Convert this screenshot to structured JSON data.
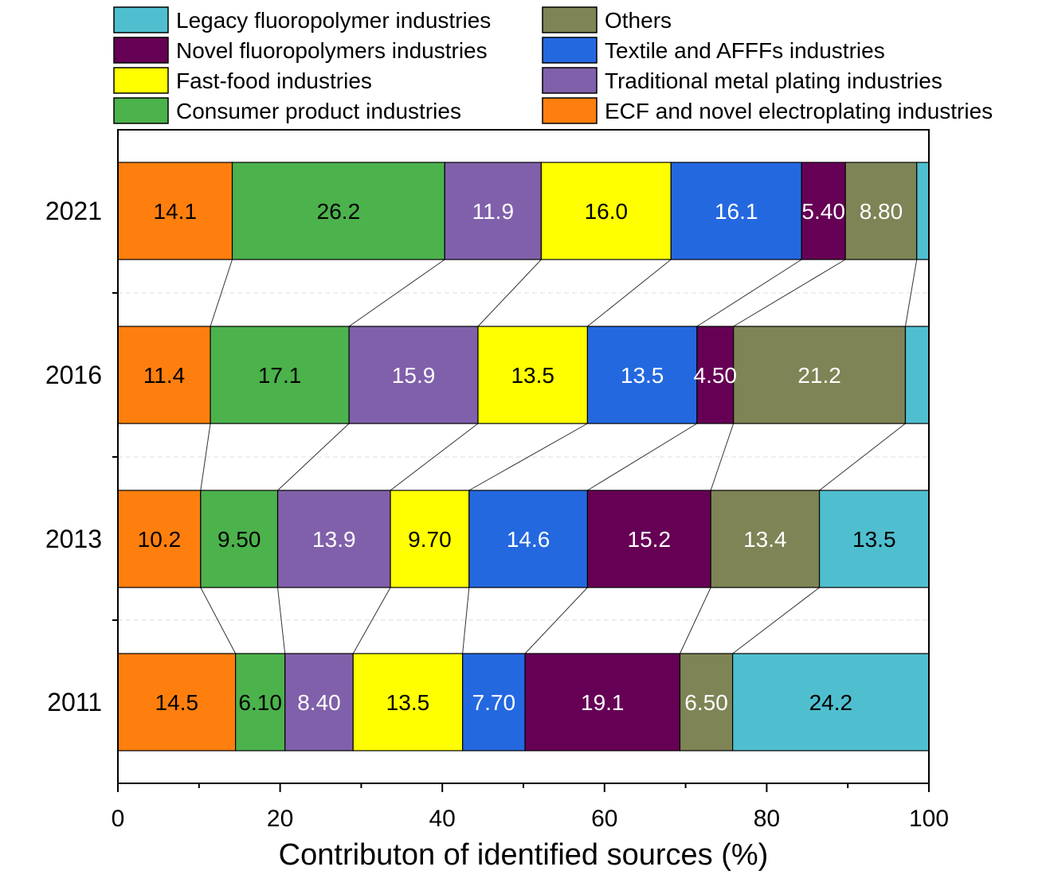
{
  "chart_data": {
    "type": "bar",
    "orientation": "horizontal",
    "stacked": true,
    "title": "",
    "xlabel": "Contributon of identified sources (%)",
    "ylabel": "",
    "xlim": [
      0,
      100
    ],
    "xticks": [
      "0",
      "20",
      "40",
      "60",
      "80",
      "100"
    ],
    "categories": [
      "2021",
      "2016",
      "2013",
      "2011"
    ],
    "legend_position": "top",
    "connector_lines": true,
    "series": [
      {
        "name": "ECF and novel electroplating industries",
        "color": "#ff7f0e",
        "label_color": "#000000",
        "values": [
          14.1,
          11.4,
          10.2,
          14.5
        ],
        "labels": [
          "14.1",
          "11.4",
          "10.2",
          "14.5"
        ]
      },
      {
        "name": "Consumer product industries",
        "color": "#4cb24c",
        "label_color": "#000000",
        "values": [
          26.2,
          17.1,
          9.5,
          6.1
        ],
        "labels": [
          "26.2",
          "17.1",
          "9.50",
          "6.10"
        ]
      },
      {
        "name": "Traditional metal plating industries",
        "color": "#8060aa",
        "label_color": "#ffffff",
        "values": [
          11.9,
          15.9,
          13.9,
          8.4
        ],
        "labels": [
          "11.9",
          "15.9",
          "13.9",
          "8.40"
        ]
      },
      {
        "name": "Fast-food industries",
        "color": "#ffff00",
        "label_color": "#000000",
        "values": [
          16.0,
          13.5,
          9.7,
          13.5
        ],
        "labels": [
          "16.0",
          "13.5",
          "9.70",
          "13.5"
        ]
      },
      {
        "name": "Textile and AFFFs industries",
        "color": "#2468e0",
        "label_color": "#ffffff",
        "values": [
          16.1,
          13.5,
          14.6,
          7.7
        ],
        "labels": [
          "16.1",
          "13.5",
          "14.6",
          "7.70"
        ]
      },
      {
        "name": "Novel fluoropolymers industries",
        "color": "#660055",
        "label_color": "#ffffff",
        "values": [
          5.4,
          4.5,
          15.2,
          19.1
        ],
        "labels": [
          "5.40",
          "4.50",
          "15.2",
          "19.1"
        ]
      },
      {
        "name": "Others",
        "color": "#7e8455",
        "label_color": "#ffffff",
        "values": [
          8.8,
          21.2,
          13.4,
          6.5
        ],
        "labels": [
          "8.80",
          "21.2",
          "13.4",
          "6.50"
        ]
      },
      {
        "name": "Legacy fluoropolymer industries",
        "color": "#4fbfcf",
        "label_color": "#000000",
        "values": [
          1.5,
          2.9,
          13.5,
          24.2
        ],
        "labels": [
          "",
          "",
          "13.5",
          "24.2"
        ]
      }
    ],
    "legend_order": [
      "Legacy fluoropolymer industries",
      "Novel fluoropolymers industries",
      "Fast-food industries",
      "Consumer product industries",
      "Others",
      "Textile and AFFFs industries",
      "Traditional metal plating industries",
      "ECF and novel electroplating industries"
    ]
  }
}
